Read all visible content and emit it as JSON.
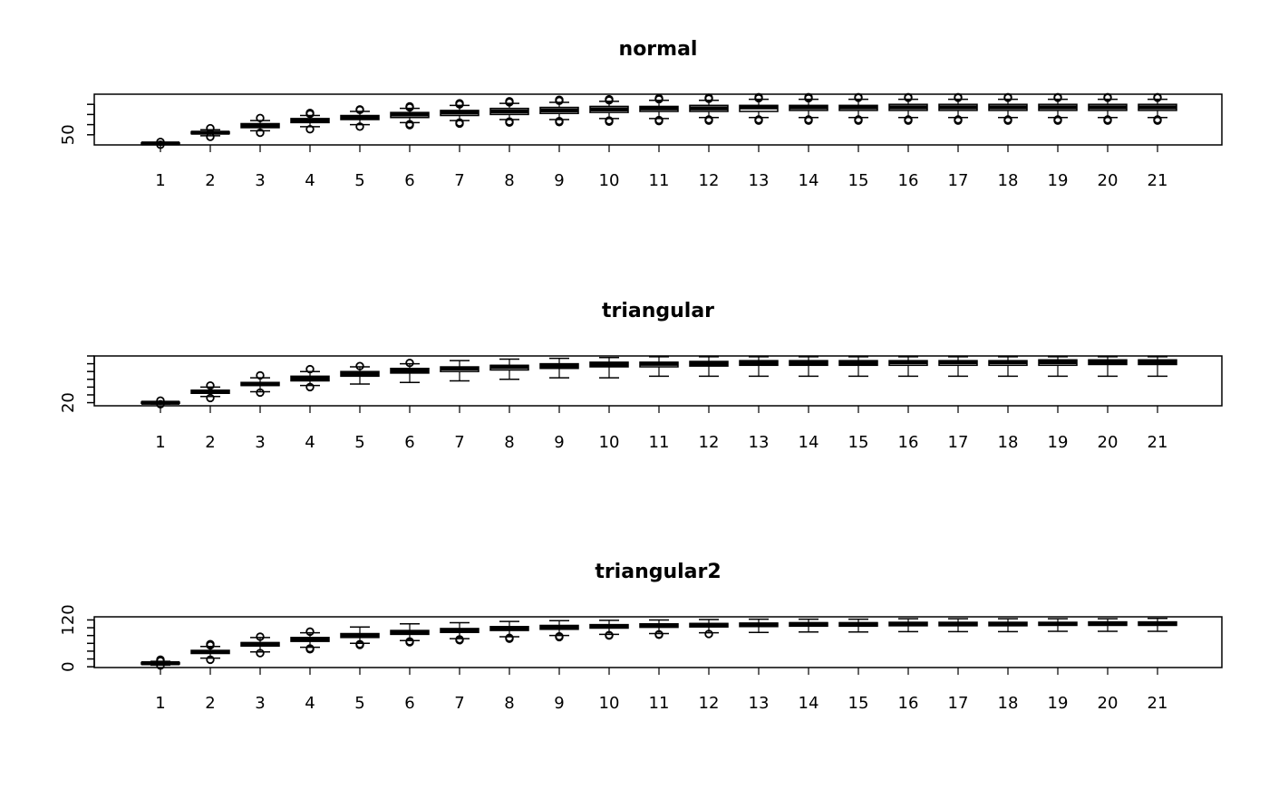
{
  "chart_data": [
    {
      "type": "boxplot",
      "title": "normal",
      "xlabel": "",
      "ylabel": "",
      "categories": [
        "1",
        "2",
        "3",
        "4",
        "5",
        "6",
        "7",
        "8",
        "9",
        "10",
        "11",
        "12",
        "13",
        "14",
        "15",
        "16",
        "17",
        "18",
        "19",
        "20",
        "21"
      ],
      "ylim": [
        40,
        90
      ],
      "yticks": [
        50,
        60,
        70,
        80
      ],
      "ytick_labels": [
        "50",
        "",
        "",
        ""
      ],
      "boxes": [
        {
          "whisker_low": 40.5,
          "q1": 41,
          "median": 41.5,
          "q3": 42,
          "whisker_high": 42.5,
          "outliers": [
            40.2,
            43.0
          ]
        },
        {
          "whisker_low": 49,
          "q1": 51,
          "median": 52,
          "q3": 53,
          "whisker_high": 55,
          "outliers": [
            48.0,
            56.5
          ]
        },
        {
          "whisker_low": 54,
          "q1": 57,
          "median": 59,
          "q3": 61,
          "whisker_high": 64,
          "outliers": [
            52.0,
            66.5
          ]
        },
        {
          "whisker_low": 58,
          "q1": 62,
          "median": 64,
          "q3": 66,
          "whisker_high": 69,
          "outliers": [
            55.5,
            70.5,
            71.5
          ]
        },
        {
          "whisker_low": 60,
          "q1": 65,
          "median": 67,
          "q3": 69,
          "whisker_high": 73,
          "outliers": [
            58.0,
            74.5,
            75.0
          ]
        },
        {
          "whisker_low": 62,
          "q1": 67,
          "median": 70,
          "q3": 72,
          "whisker_high": 76,
          "outliers": [
            59.5,
            60.5,
            77.0,
            78.0
          ]
        },
        {
          "whisker_low": 64,
          "q1": 69,
          "median": 72,
          "q3": 74,
          "whisker_high": 79,
          "outliers": [
            61.0,
            62.0,
            80.0,
            81.0
          ]
        },
        {
          "whisker_low": 65,
          "q1": 70,
          "median": 73,
          "q3": 76,
          "whisker_high": 81,
          "outliers": [
            62.0,
            63.0,
            82.0,
            83.0
          ]
        },
        {
          "whisker_low": 65,
          "q1": 71,
          "median": 74,
          "q3": 77,
          "whisker_high": 82,
          "outliers": [
            62.5,
            63.5,
            83.5,
            84.5
          ]
        },
        {
          "whisker_low": 66,
          "q1": 72,
          "median": 75,
          "q3": 78,
          "whisker_high": 83,
          "outliers": [
            63.0,
            64.0,
            84.0,
            85.0
          ]
        },
        {
          "whisker_low": 66,
          "q1": 73,
          "median": 76,
          "q3": 78,
          "whisker_high": 84,
          "outliers": [
            63.5,
            64.5,
            85.0,
            86.0
          ]
        },
        {
          "whisker_low": 67,
          "q1": 73,
          "median": 76,
          "q3": 79,
          "whisker_high": 84,
          "outliers": [
            64.0,
            65.0,
            85.5,
            86.5
          ]
        },
        {
          "whisker_low": 67,
          "q1": 73,
          "median": 77,
          "q3": 79,
          "whisker_high": 85,
          "outliers": [
            64.0,
            65.0,
            86.0,
            87.0
          ]
        },
        {
          "whisker_low": 67,
          "q1": 74,
          "median": 77,
          "q3": 79,
          "whisker_high": 85,
          "outliers": [
            64.0,
            65.0,
            86.0,
            87.0
          ]
        },
        {
          "whisker_low": 67,
          "q1": 74,
          "median": 77,
          "q3": 79,
          "whisker_high": 85,
          "outliers": [
            64.0,
            65.0,
            86.5,
            87.0
          ]
        },
        {
          "whisker_low": 67,
          "q1": 74,
          "median": 77,
          "q3": 80,
          "whisker_high": 85,
          "outliers": [
            64.0,
            65.0,
            86.5,
            87.0
          ]
        },
        {
          "whisker_low": 67,
          "q1": 74,
          "median": 77,
          "q3": 80,
          "whisker_high": 85,
          "outliers": [
            64.0,
            65.0,
            86.5,
            87.0
          ]
        },
        {
          "whisker_low": 67,
          "q1": 74,
          "median": 77,
          "q3": 80,
          "whisker_high": 85,
          "outliers": [
            64.0,
            65.0,
            86.5,
            87.0
          ]
        },
        {
          "whisker_low": 67,
          "q1": 74,
          "median": 77,
          "q3": 80,
          "whisker_high": 85,
          "outliers": [
            64.0,
            65.0,
            86.5,
            87.0
          ]
        },
        {
          "whisker_low": 67,
          "q1": 74,
          "median": 77,
          "q3": 80,
          "whisker_high": 85,
          "outliers": [
            64.0,
            65.0,
            86.5,
            87.0
          ]
        },
        {
          "whisker_low": 67,
          "q1": 74,
          "median": 77,
          "q3": 80,
          "whisker_high": 85,
          "outliers": [
            64.0,
            65.0,
            86.5,
            87.0
          ]
        }
      ]
    },
    {
      "type": "boxplot",
      "title": "triangular",
      "xlabel": "",
      "ylabel": "",
      "categories": [
        "1",
        "2",
        "3",
        "4",
        "5",
        "6",
        "7",
        "8",
        "9",
        "10",
        "11",
        "12",
        "13",
        "14",
        "15",
        "16",
        "17",
        "18",
        "19",
        "20",
        "21"
      ],
      "ylim": [
        18,
        50
      ],
      "yticks": [
        20,
        25,
        30,
        35,
        40,
        45,
        50
      ],
      "ytick_labels": [
        "20",
        "",
        "",
        "",
        "",
        "",
        ""
      ],
      "boxes": [
        {
          "whisker_low": 19.2,
          "q1": 19.6,
          "median": 20,
          "q3": 20.4,
          "whisker_high": 20.8,
          "outliers": [
            19.0,
            21.3
          ]
        },
        {
          "whisker_low": 24,
          "q1": 26,
          "median": 27,
          "q3": 28,
          "whisker_high": 30,
          "outliers": [
            23.0,
            31.0
          ]
        },
        {
          "whisker_low": 27,
          "q1": 31,
          "median": 32,
          "q3": 33,
          "whisker_high": 36,
          "outliers": [
            26.5,
            37.5
          ]
        },
        {
          "whisker_low": 31,
          "q1": 34,
          "median": 35.5,
          "q3": 37,
          "whisker_high": 40,
          "outliers": [
            30.0,
            41.5
          ]
        },
        {
          "whisker_low": 32,
          "q1": 37,
          "median": 38.5,
          "q3": 40,
          "whisker_high": 43,
          "outliers": [
            43.5
          ]
        },
        {
          "whisker_low": 33,
          "q1": 39,
          "median": 40.5,
          "q3": 42,
          "whisker_high": 45,
          "outliers": [
            45.5
          ]
        },
        {
          "whisker_low": 34,
          "q1": 40,
          "median": 42,
          "q3": 43,
          "whisker_high": 47,
          "outliers": []
        },
        {
          "whisker_low": 35,
          "q1": 41,
          "median": 43,
          "q3": 44,
          "whisker_high": 48,
          "outliers": []
        },
        {
          "whisker_low": 36,
          "q1": 42,
          "median": 43.5,
          "q3": 45,
          "whisker_high": 48.5,
          "outliers": []
        },
        {
          "whisker_low": 36,
          "q1": 43,
          "median": 44.5,
          "q3": 46,
          "whisker_high": 49,
          "outliers": []
        },
        {
          "whisker_low": 37,
          "q1": 43,
          "median": 45,
          "q3": 46,
          "whisker_high": 49.5,
          "outliers": []
        },
        {
          "whisker_low": 37,
          "q1": 43.5,
          "median": 45,
          "q3": 46.5,
          "whisker_high": 49.5,
          "outliers": []
        },
        {
          "whisker_low": 37,
          "q1": 44,
          "median": 45.5,
          "q3": 47,
          "whisker_high": 49.5,
          "outliers": []
        },
        {
          "whisker_low": 37,
          "q1": 44,
          "median": 45.5,
          "q3": 47,
          "whisker_high": 49.5,
          "outliers": []
        },
        {
          "whisker_low": 37,
          "q1": 44,
          "median": 45.5,
          "q3": 47,
          "whisker_high": 49.5,
          "outliers": []
        },
        {
          "whisker_low": 37,
          "q1": 44,
          "median": 46,
          "q3": 47,
          "whisker_high": 49.5,
          "outliers": []
        },
        {
          "whisker_low": 37,
          "q1": 44,
          "median": 46,
          "q3": 47,
          "whisker_high": 49.5,
          "outliers": []
        },
        {
          "whisker_low": 37,
          "q1": 44,
          "median": 46,
          "q3": 47,
          "whisker_high": 49.5,
          "outliers": []
        },
        {
          "whisker_low": 37,
          "q1": 44,
          "median": 46,
          "q3": 47.5,
          "whisker_high": 49.5,
          "outliers": []
        },
        {
          "whisker_low": 37,
          "q1": 44.5,
          "median": 46,
          "q3": 47.5,
          "whisker_high": 49.5,
          "outliers": []
        },
        {
          "whisker_low": 37,
          "q1": 44.5,
          "median": 46,
          "q3": 47.5,
          "whisker_high": 49.5,
          "outliers": []
        }
      ]
    },
    {
      "type": "boxplot",
      "title": "triangular2",
      "xlabel": "",
      "ylabel": "",
      "categories": [
        "1",
        "2",
        "3",
        "4",
        "5",
        "6",
        "7",
        "8",
        "9",
        "10",
        "11",
        "12",
        "13",
        "14",
        "15",
        "16",
        "17",
        "18",
        "19",
        "20",
        "21"
      ],
      "ylim": [
        -2,
        128
      ],
      "yticks": [
        0,
        20,
        40,
        60,
        80,
        100,
        120
      ],
      "ytick_labels": [
        "0",
        "",
        "",
        "",
        "",
        "",
        "120"
      ],
      "boxes": [
        {
          "whisker_low": 4,
          "q1": 7,
          "median": 9,
          "q3": 11,
          "whisker_high": 14,
          "outliers": [
            3.0,
            15.0,
            18.0
          ]
        },
        {
          "whisker_low": 22,
          "q1": 34,
          "median": 38,
          "q3": 42,
          "whisker_high": 52,
          "outliers": [
            18.0,
            55.0,
            58.0
          ]
        },
        {
          "whisker_low": 38,
          "q1": 53,
          "median": 58,
          "q3": 62,
          "whisker_high": 75,
          "outliers": [
            35.0,
            77.0
          ]
        },
        {
          "whisker_low": 50,
          "q1": 65,
          "median": 70,
          "q3": 75,
          "whisker_high": 87,
          "outliers": [
            45.0,
            47.0,
            90.0
          ]
        },
        {
          "whisker_low": 60,
          "q1": 75,
          "median": 80,
          "q3": 85,
          "whisker_high": 102,
          "outliers": [
            56.0,
            58.0
          ]
        },
        {
          "whisker_low": 67,
          "q1": 83,
          "median": 88,
          "q3": 93,
          "whisker_high": 110,
          "outliers": [
            63.0,
            65.0
          ]
        },
        {
          "whisker_low": 72,
          "q1": 88,
          "median": 93,
          "q3": 98,
          "whisker_high": 113,
          "outliers": [
            68.0,
            70.0
          ]
        },
        {
          "whisker_low": 77,
          "q1": 93,
          "median": 98,
          "q3": 103,
          "whisker_high": 116,
          "outliers": [
            72.0,
            74.0
          ]
        },
        {
          "whisker_low": 80,
          "q1": 96,
          "median": 101,
          "q3": 106,
          "whisker_high": 118,
          "outliers": [
            76.0,
            78.0
          ]
        },
        {
          "whisker_low": 83,
          "q1": 99,
          "median": 104,
          "q3": 108,
          "whisker_high": 119,
          "outliers": [
            80.0,
            81.0
          ]
        },
        {
          "whisker_low": 85,
          "q1": 101,
          "median": 106,
          "q3": 110,
          "whisker_high": 120,
          "outliers": [
            82.0,
            83.0
          ]
        },
        {
          "whisker_low": 87,
          "q1": 102,
          "median": 107,
          "q3": 111,
          "whisker_high": 121,
          "outliers": [
            84.0
          ]
        },
        {
          "whisker_low": 88,
          "q1": 103,
          "median": 108,
          "q3": 112,
          "whisker_high": 122,
          "outliers": []
        },
        {
          "whisker_low": 89,
          "q1": 104,
          "median": 109,
          "q3": 113,
          "whisker_high": 122,
          "outliers": []
        },
        {
          "whisker_low": 89,
          "q1": 104,
          "median": 109,
          "q3": 113,
          "whisker_high": 122,
          "outliers": []
        },
        {
          "whisker_low": 90,
          "q1": 105,
          "median": 109,
          "q3": 114,
          "whisker_high": 123,
          "outliers": []
        },
        {
          "whisker_low": 90,
          "q1": 105,
          "median": 110,
          "q3": 114,
          "whisker_high": 123,
          "outliers": []
        },
        {
          "whisker_low": 90,
          "q1": 105,
          "median": 110,
          "q3": 114,
          "whisker_high": 123,
          "outliers": []
        },
        {
          "whisker_low": 91,
          "q1": 106,
          "median": 110,
          "q3": 114,
          "whisker_high": 123,
          "outliers": []
        },
        {
          "whisker_low": 91,
          "q1": 106,
          "median": 110,
          "q3": 115,
          "whisker_high": 123,
          "outliers": []
        },
        {
          "whisker_low": 91,
          "q1": 106,
          "median": 110,
          "q3": 115,
          "whisker_high": 124,
          "outliers": []
        }
      ]
    }
  ]
}
